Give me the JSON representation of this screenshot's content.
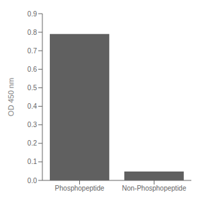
{
  "chart_data": {
    "type": "bar",
    "categories": [
      "Phosphopeptide",
      "Non-Phosphopeptide"
    ],
    "values": [
      0.79,
      0.048
    ],
    "color": "#606060",
    "ylabel": "OD 450 nm",
    "ylim": [
      0,
      0.9
    ],
    "yticks": [
      {
        "value": 0,
        "label": "0.0"
      },
      0.1,
      0.2,
      0.3,
      0.4,
      0.5,
      0.6,
      0.7,
      0.8,
      0.9
    ],
    "grid": false
  }
}
